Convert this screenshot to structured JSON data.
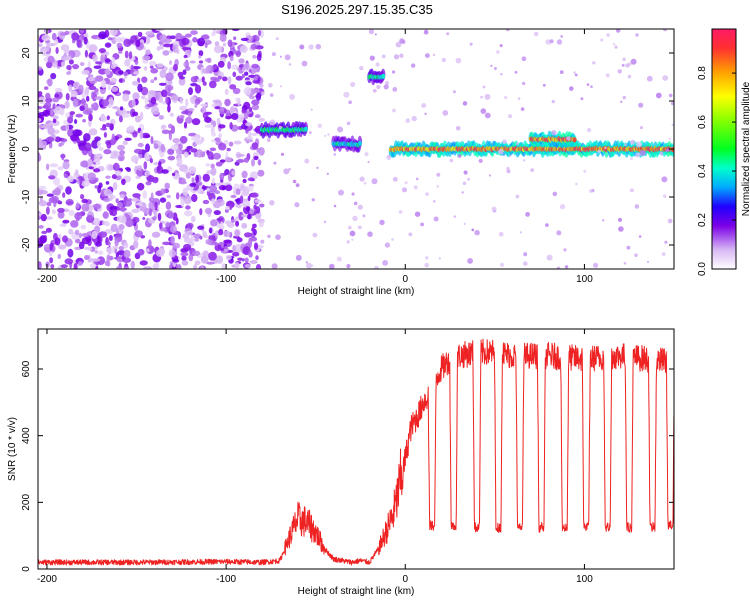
{
  "title": "S196.2025.297.15.35.C35",
  "chart_data": [
    {
      "type": "heatmap",
      "name": "spectrogram",
      "xlabel": "Height of straight line (km)",
      "ylabel": "Frequency (Hz)",
      "xlim": [
        -205,
        150
      ],
      "ylim": [
        -25,
        25
      ],
      "xticks": [
        -200,
        -100,
        0,
        100
      ],
      "yticks": [
        -20,
        -10,
        0,
        10,
        20
      ],
      "xtick_labels": [
        "-200",
        "-100",
        "0",
        "100"
      ],
      "ytick_labels": [
        "-20",
        "-10",
        "0",
        "10",
        "20"
      ],
      "colorbar": {
        "label": "Normalized spectral amplitude",
        "range": [
          0.0,
          0.98
        ],
        "ticks": [
          0.0,
          0.2,
          0.4,
          0.6,
          0.8
        ],
        "tick_labels": [
          "0.0",
          "0.2",
          "0.4",
          "0.6",
          "0.8"
        ]
      },
      "features": [
        {
          "x_range": [
            -205,
            -80
          ],
          "freq_range": [
            -25,
            25
          ],
          "amplitude": 0.15,
          "note": "broadband noise"
        },
        {
          "x_range": [
            -80,
            -55
          ],
          "freq": 4,
          "amplitude": 0.5
        },
        {
          "x_range": [
            -40,
            -25
          ],
          "freq": 1,
          "amplitude": 0.45
        },
        {
          "x_range": [
            -20,
            -12
          ],
          "freq": 15,
          "amplitude": 0.5
        },
        {
          "x_range": [
            -8,
            150
          ],
          "freq": 0,
          "amplitude": 0.95
        },
        {
          "x_range": [
            70,
            95
          ],
          "freq": 2,
          "amplitude": 0.95
        }
      ]
    },
    {
      "type": "line",
      "name": "snr",
      "xlabel": "Height of straight line (km)",
      "ylabel": "SNR (10 * v/v)",
      "xlim": [
        -205,
        150
      ],
      "ylim": [
        0,
        720
      ],
      "xticks": [
        -200,
        -100,
        0,
        100
      ],
      "yticks": [
        0,
        200,
        400,
        600
      ],
      "xtick_labels": [
        "-200",
        "-100",
        "0",
        "100"
      ],
      "ytick_labels": [
        "0",
        "200",
        "400",
        "600"
      ],
      "series": [
        {
          "name": "SNR",
          "color": "#ee2222",
          "x": [
            -205,
            -150,
            -100,
            -80,
            -70,
            -65,
            -60,
            -55,
            -50,
            -45,
            -40,
            -35,
            -30,
            -25,
            -20,
            -15,
            -10,
            -7,
            -5,
            -3,
            0,
            3,
            5,
            8,
            10,
            13,
            16,
            20,
            25,
            30,
            40,
            50,
            60,
            80,
            100,
            120,
            150
          ],
          "values": [
            20,
            20,
            22,
            20,
            25,
            90,
            150,
            140,
            110,
            60,
            30,
            25,
            20,
            25,
            20,
            60,
            120,
            160,
            200,
            260,
            330,
            420,
            440,
            470,
            500,
            520,
            560,
            600,
            630,
            640,
            650,
            650,
            640,
            640,
            630,
            640,
            620
          ]
        }
      ],
      "dropouts": [
        {
          "x": 15,
          "low": 130
        },
        {
          "x": 27,
          "low": 130
        },
        {
          "x": 40,
          "low": 125
        },
        {
          "x": 52,
          "low": 125
        },
        {
          "x": 64,
          "low": 125
        },
        {
          "x": 76,
          "low": 125
        },
        {
          "x": 89,
          "low": 125
        },
        {
          "x": 101,
          "low": 125
        },
        {
          "x": 113,
          "low": 125
        },
        {
          "x": 125,
          "low": 125
        },
        {
          "x": 138,
          "low": 125
        },
        {
          "x": 148,
          "low": 130
        }
      ]
    }
  ]
}
